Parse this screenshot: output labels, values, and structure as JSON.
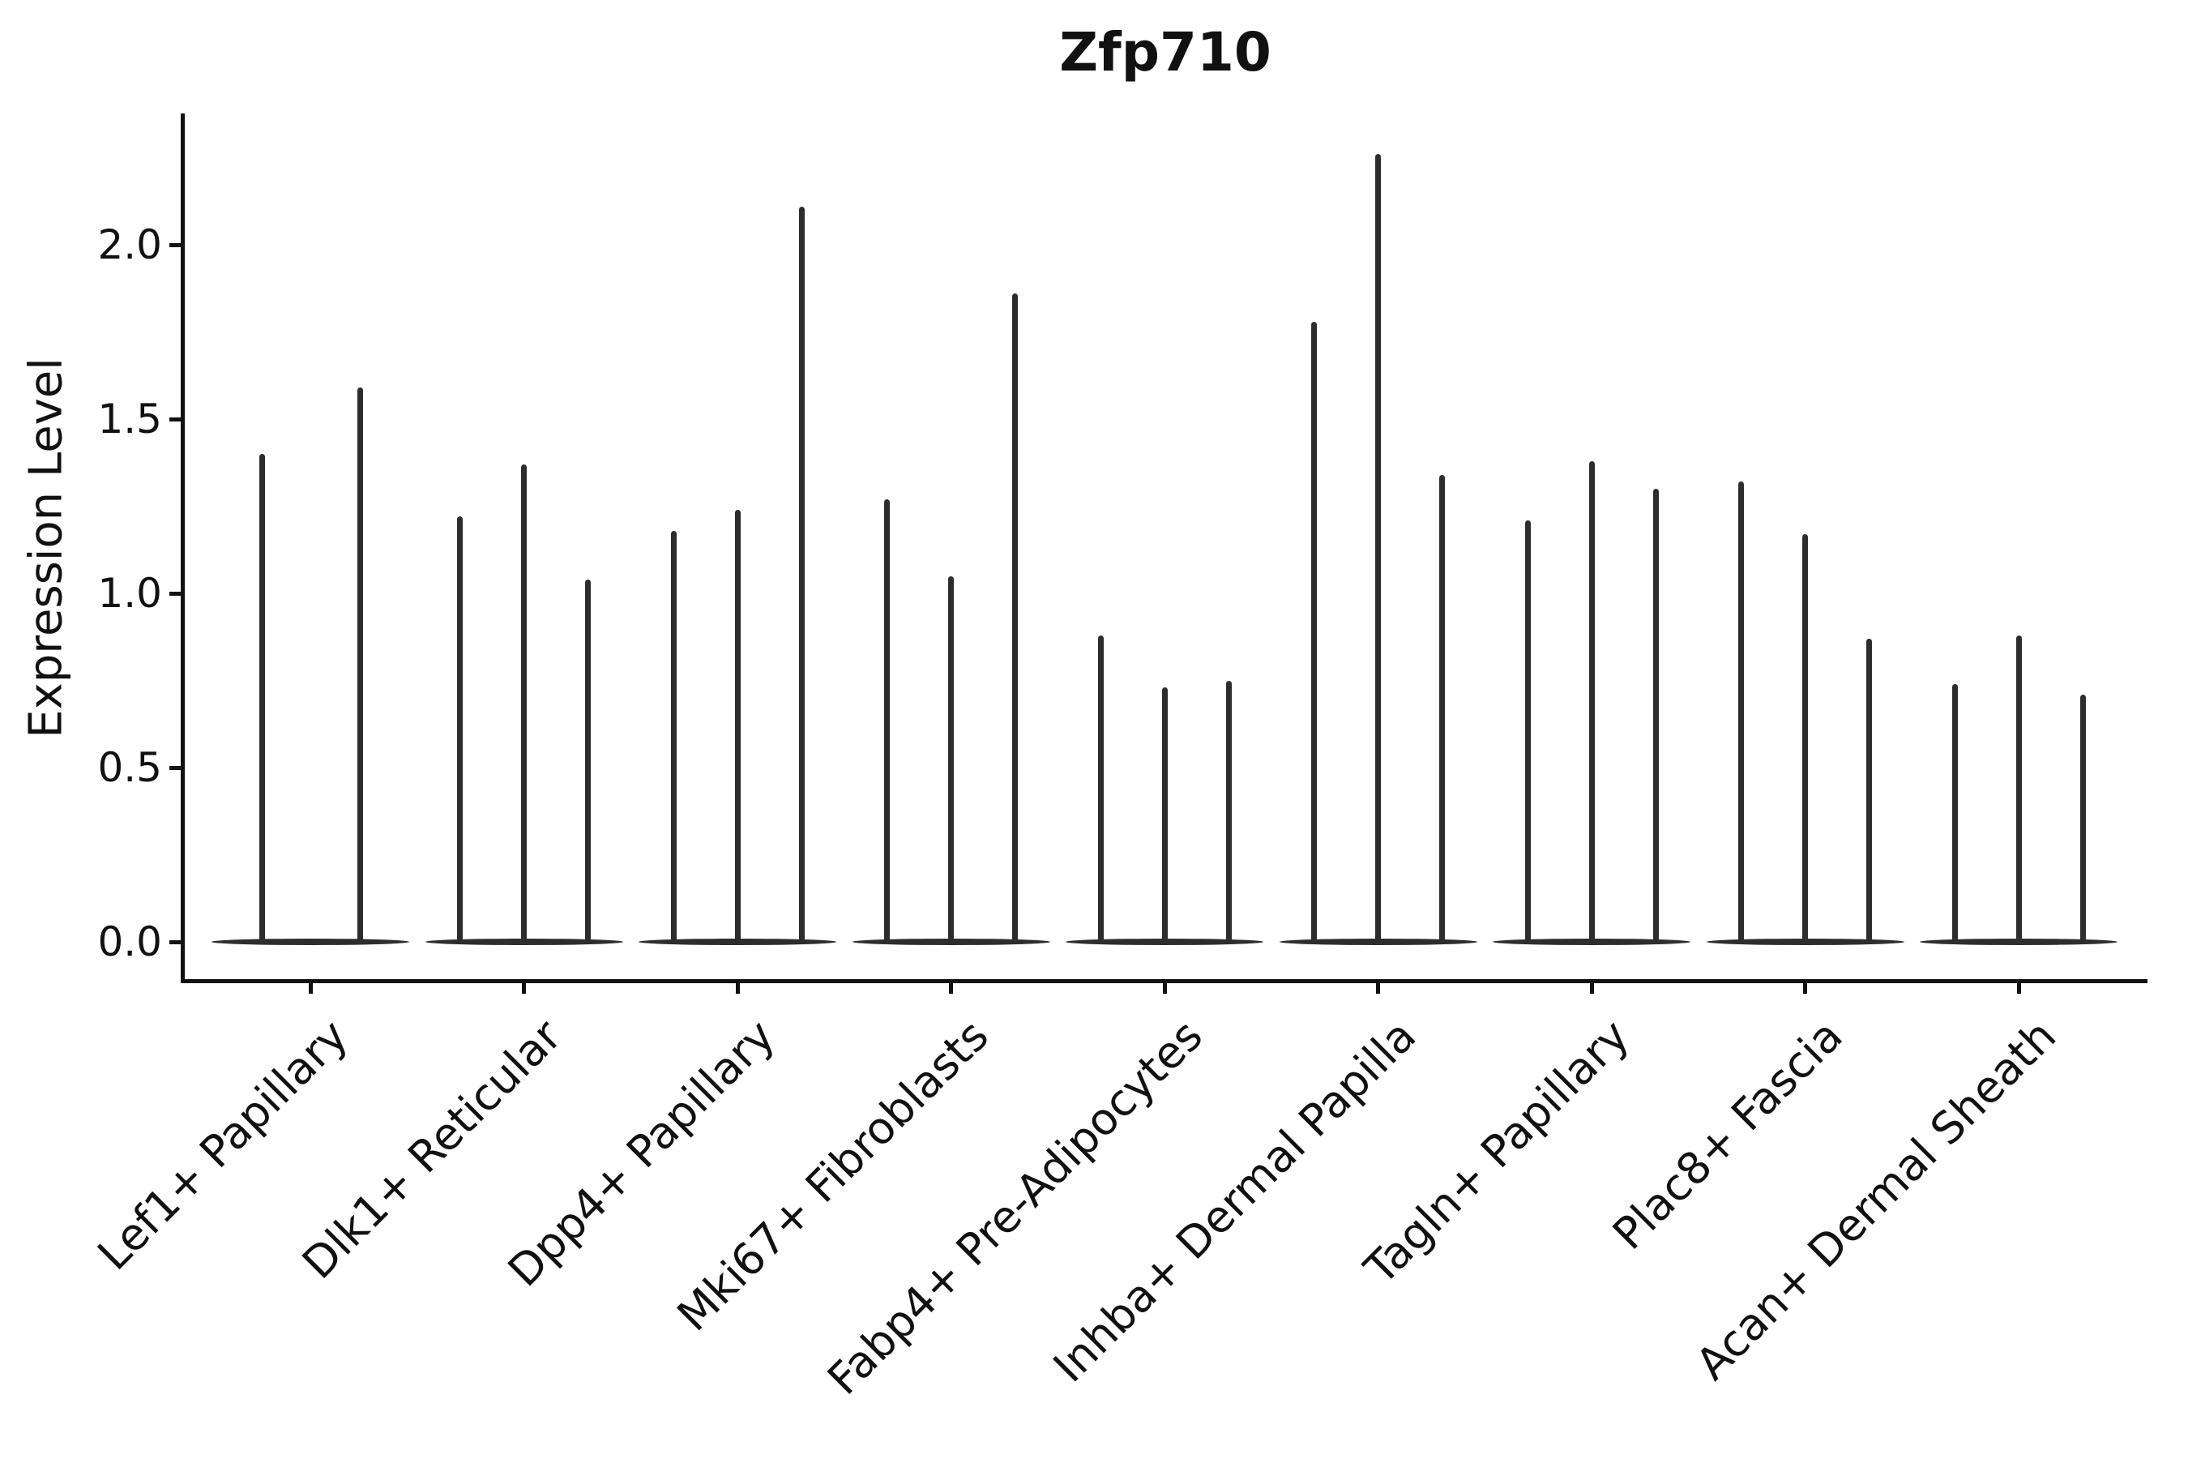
{
  "title": "Zfp710",
  "y_axis_label": "Expression Level",
  "colors": {
    "axis": "#111111",
    "violin": "#2d2d2d",
    "background": "#ffffff"
  },
  "chart_data": {
    "type": "violin",
    "title": "Zfp710",
    "xlabel": "",
    "ylabel": "Expression Level",
    "ylim": [
      -0.11,
      2.38
    ],
    "yticks": [
      0.0,
      0.5,
      1.0,
      1.5,
      2.0
    ],
    "grid": false,
    "legend": "none",
    "x_tick_rotation_deg": 45,
    "categories": [
      "Lef1+ Papillary",
      "Dlk1+ Reticular",
      "Dpp4+ Papillary",
      "Mki67+ Fibroblasts",
      "Fabp4+ Pre-Adipocytes",
      "Inhba+ Dermal Papilla",
      "Tagln+ Papillary",
      "Plac8+ Fascia",
      "Acan+ Dermal Sheath"
    ],
    "description": "Violin plot of Zfp710 expression; each category contains 2-3 very thin violins (needle-like spikes rising from a wide flat base at 0). Values below are the peak (max) expression level of each violin, left to right within each category.",
    "violin_peaks": [
      [
        1.4,
        1.59
      ],
      [
        1.22,
        1.37,
        1.04
      ],
      [
        1.18,
        1.24,
        2.11
      ],
      [
        1.27,
        1.05,
        1.86
      ],
      [
        0.88,
        0.73,
        0.75
      ],
      [
        1.78,
        2.26,
        1.34
      ],
      [
        1.21,
        1.38,
        1.3
      ],
      [
        1.32,
        1.17,
        0.87
      ],
      [
        0.74,
        0.88,
        0.71
      ]
    ]
  }
}
